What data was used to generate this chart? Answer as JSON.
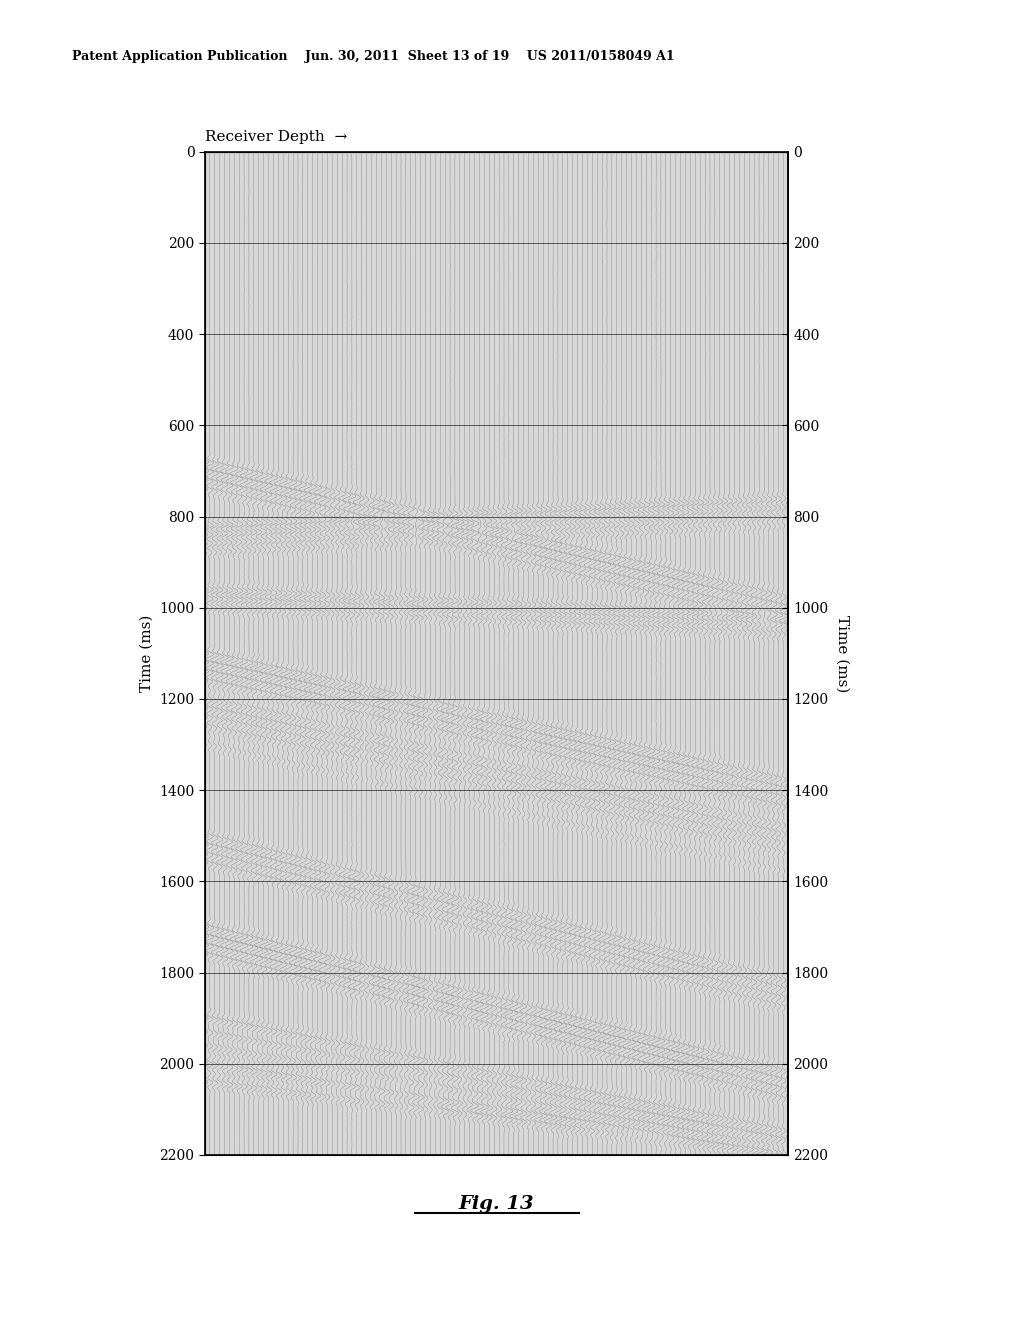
{
  "title_header": "Patent Application Publication    Jun. 30, 2011  Sheet 13 of 19    US 2011/0158049 A1",
  "fig_label": "Fig. 13",
  "x_label_top": "Receiver Depth",
  "y_label_left": "Time (ms)",
  "y_label_right": "Time (ms)",
  "y_min": 0,
  "y_max": 2200,
  "y_tick_interval": 200,
  "n_traces": 120,
  "n_samples": 2200,
  "sample_rate": 1,
  "background_color": "#ffffff",
  "plot_bg_color": "#d8d8d8",
  "events_config": [
    [
      680,
      980,
      0.9,
      0.045,
      28
    ],
    [
      700,
      1000,
      0.8,
      0.045,
      28
    ],
    [
      720,
      1020,
      0.7,
      0.045,
      28
    ],
    [
      740,
      1040,
      0.6,
      0.045,
      28
    ],
    [
      820,
      760,
      0.9,
      0.045,
      25
    ],
    [
      840,
      780,
      0.7,
      0.045,
      25
    ],
    [
      860,
      800,
      0.6,
      0.045,
      25
    ],
    [
      880,
      820,
      0.5,
      0.045,
      25
    ],
    [
      960,
      1020,
      0.8,
      0.045,
      28
    ],
    [
      980,
      1040,
      0.7,
      0.045,
      28
    ],
    [
      1000,
      1060,
      0.6,
      0.045,
      28
    ],
    [
      1100,
      1380,
      0.9,
      0.045,
      28
    ],
    [
      1120,
      1400,
      0.8,
      0.045,
      28
    ],
    [
      1140,
      1420,
      0.75,
      0.045,
      28
    ],
    [
      1160,
      1440,
      0.7,
      0.045,
      28
    ],
    [
      1200,
      1480,
      0.65,
      0.045,
      28
    ],
    [
      1220,
      1500,
      0.6,
      0.045,
      28
    ],
    [
      1240,
      1520,
      0.55,
      0.045,
      28
    ],
    [
      1260,
      1540,
      0.5,
      0.045,
      28
    ],
    [
      1300,
      1580,
      0.45,
      0.045,
      28
    ],
    [
      1500,
      1820,
      0.8,
      0.045,
      28
    ],
    [
      1520,
      1840,
      0.7,
      0.045,
      28
    ],
    [
      1540,
      1860,
      0.65,
      0.045,
      28
    ],
    [
      1560,
      1880,
      0.6,
      0.045,
      28
    ],
    [
      1700,
      2020,
      0.9,
      0.045,
      30
    ],
    [
      1720,
      2040,
      0.8,
      0.045,
      30
    ],
    [
      1740,
      2060,
      0.75,
      0.045,
      30
    ],
    [
      1760,
      2080,
      0.7,
      0.045,
      30
    ],
    [
      1900,
      2150,
      0.9,
      0.045,
      30
    ],
    [
      1930,
      2170,
      0.8,
      0.045,
      30
    ],
    [
      1960,
      2190,
      0.7,
      0.045,
      30
    ],
    [
      2000,
      2200,
      0.9,
      0.045,
      30
    ],
    [
      2040,
      2200,
      0.8,
      0.045,
      30
    ]
  ]
}
